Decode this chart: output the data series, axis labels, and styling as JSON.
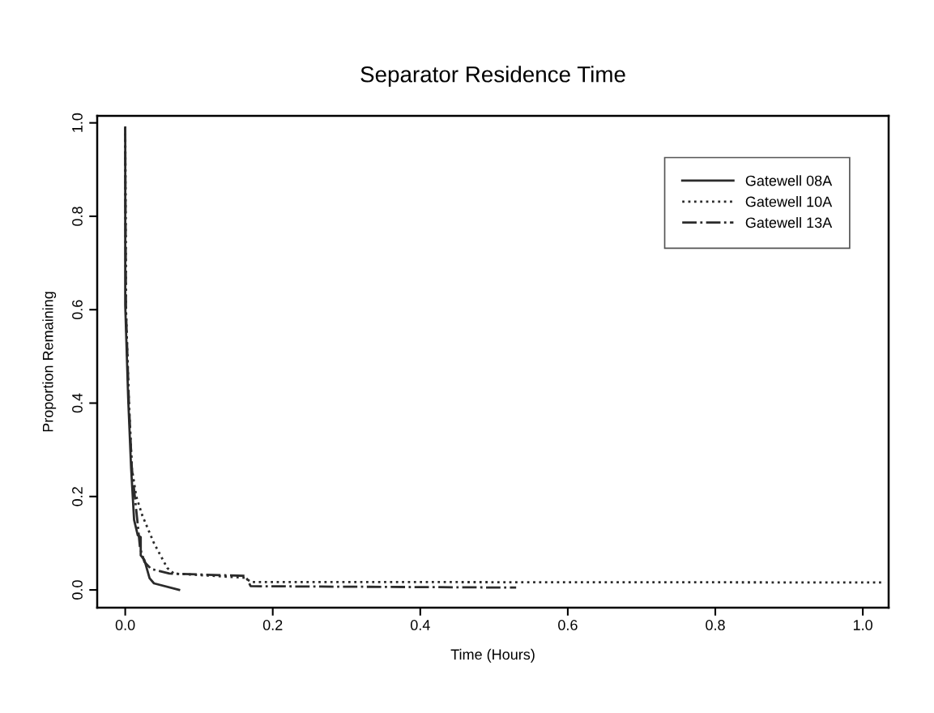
{
  "chart_data": {
    "type": "line",
    "title": "Separator Residence Time",
    "xlabel": "Time (Hours)",
    "ylabel": "Proportion Remaining",
    "xlim": [
      -0.038,
      1.035
    ],
    "ylim": [
      -0.038,
      1.015
    ],
    "xticks": [
      {
        "value": 0,
        "label": "0.0"
      },
      {
        "value": 0.2,
        "label": "0.2"
      },
      {
        "value": 0.4,
        "label": "0.4"
      },
      {
        "value": 0.6,
        "label": "0.6"
      },
      {
        "value": 0.8,
        "label": "0.8"
      },
      {
        "value": 1,
        "label": "1.0"
      }
    ],
    "yticks": [
      {
        "value": 0,
        "label": "0.0"
      },
      {
        "value": 0.2,
        "label": "0.2"
      },
      {
        "value": 0.4,
        "label": "0.4"
      },
      {
        "value": 0.6,
        "label": "0.6"
      },
      {
        "value": 0.8,
        "label": "0.8"
      },
      {
        "value": 1,
        "label": "1.0"
      }
    ],
    "grid": false,
    "legend": "top right",
    "marker": "none",
    "series": [
      {
        "name": "Gatewell 08A",
        "color": "#2b2b2b",
        "line_style": "solid",
        "x": [
          0,
          0,
          0.004,
          0.008,
          0.012,
          0.017,
          0.021,
          0.021,
          0.026,
          0.033,
          0.039,
          0.073
        ],
        "values": [
          0.99,
          0.61,
          0.41,
          0.26,
          0.15,
          0.117,
          0.113,
          0.074,
          0.064,
          0.025,
          0.014,
          0.0
        ]
      },
      {
        "name": "Gatewell 10A",
        "color": "#2b2b2b",
        "line_style": "dotted",
        "x": [
          0,
          0.001,
          0.005,
          0.009,
          0.015,
          0.023,
          0.039,
          0.057,
          0.066,
          0.163,
          0.17,
          1.03
        ],
        "values": [
          0.99,
          0.6,
          0.4,
          0.26,
          0.2,
          0.16,
          0.1,
          0.047,
          0.035,
          0.026,
          0.017,
          0.016
        ]
      },
      {
        "name": "Gatewell 13A",
        "color": "#2b2b2b",
        "line_style": "dashdot",
        "x": [
          0,
          0.001,
          0.005,
          0.009,
          0.013,
          0.017,
          0.02,
          0.026,
          0.035,
          0.06,
          0.163,
          0.17,
          0.53
        ],
        "values": [
          0.99,
          0.6,
          0.4,
          0.26,
          0.2,
          0.14,
          0.09,
          0.06,
          0.045,
          0.035,
          0.03,
          0.008,
          0.005
        ]
      }
    ]
  }
}
